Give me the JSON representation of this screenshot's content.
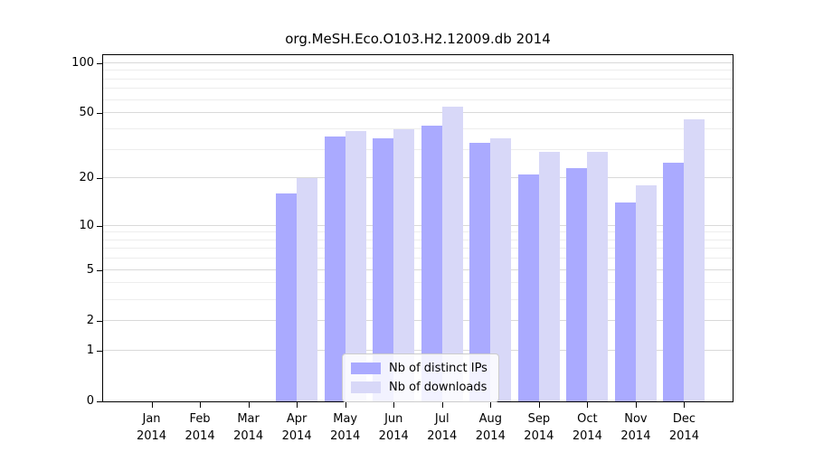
{
  "chart_data": {
    "type": "bar",
    "title": "org.MeSH.Eco.O103.H2.12009.db 2014",
    "categories": [
      "Jan",
      "Feb",
      "Mar",
      "Apr",
      "May",
      "Jun",
      "Jul",
      "Aug",
      "Sep",
      "Oct",
      "Nov",
      "Dec"
    ],
    "x_year_label": "2014",
    "series": [
      {
        "name": "Nb of distinct IPs",
        "color": "#aaaaff",
        "values": [
          0,
          0,
          0,
          16,
          36,
          35,
          42,
          33,
          21,
          23,
          14,
          25
        ]
      },
      {
        "name": "Nb of downloads",
        "color": "#d8d8f8",
        "values": [
          0,
          0,
          0,
          20,
          39,
          40,
          55,
          35,
          29,
          29,
          18,
          46
        ]
      }
    ],
    "y_axis": {
      "scale": "log1p",
      "ticks": [
        0,
        1,
        2,
        5,
        10,
        20,
        50,
        100
      ],
      "minor_gridlines": [
        3,
        4,
        6,
        7,
        8,
        9,
        30,
        40,
        60,
        70,
        80,
        90
      ],
      "max": 100
    },
    "grid": "horizontal",
    "legend_position": "bottom-center"
  }
}
